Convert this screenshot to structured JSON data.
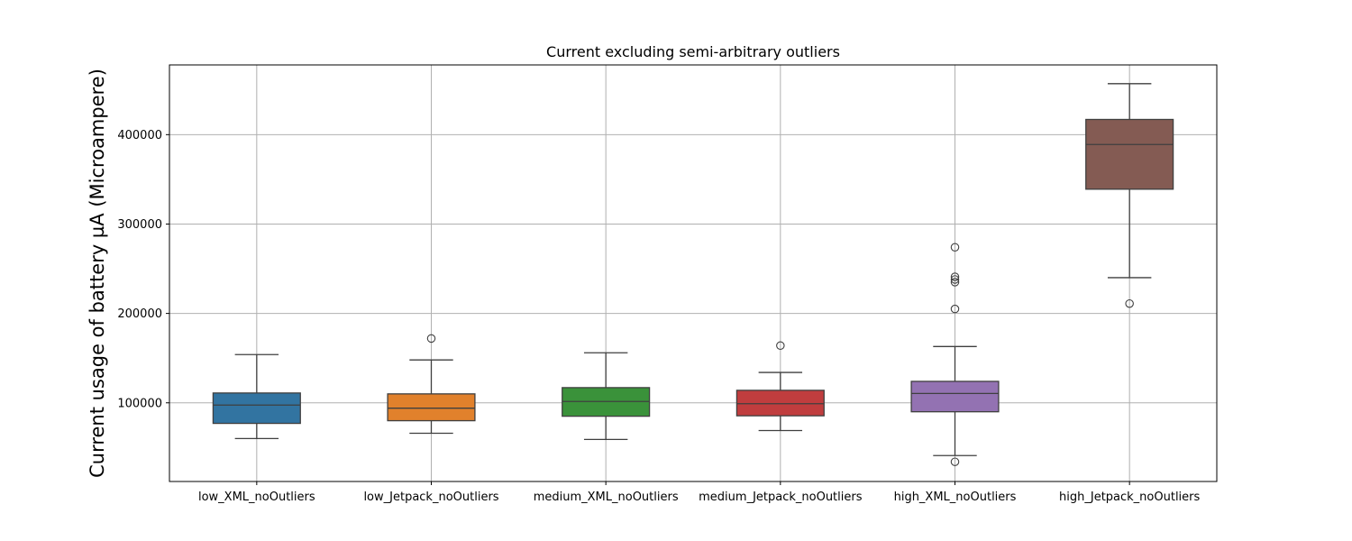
{
  "chart_data": {
    "type": "box",
    "title": "Current excluding semi-arbitrary outliers",
    "xlabel": "",
    "ylabel": "Current usage of battery µA (Microampere)",
    "ylim": [
      12000,
      478000
    ],
    "yticks": [
      100000,
      200000,
      300000,
      400000
    ],
    "ytick_labels": [
      "100000",
      "200000",
      "300000",
      "400000"
    ],
    "grid": true,
    "categories": [
      "low_XML_noOutliers",
      "low_Jetpack_noOutliers",
      "medium_XML_noOutliers",
      "medium_Jetpack_noOutliers",
      "high_XML_noOutliers",
      "high_Jetpack_noOutliers"
    ],
    "boxes": [
      {
        "category": "low_XML_noOutliers",
        "color": "#3274a1",
        "whisker_low": 60000,
        "q1": 77000,
        "median": 97500,
        "q3": 111000,
        "whisker_high": 154000,
        "outliers": []
      },
      {
        "category": "low_Jetpack_noOutliers",
        "color": "#e1812c",
        "whisker_low": 66000,
        "q1": 80000,
        "median": 94000,
        "q3": 110000,
        "whisker_high": 148000,
        "outliers": [
          172000
        ]
      },
      {
        "category": "medium_XML_noOutliers",
        "color": "#3a923a",
        "whisker_low": 59000,
        "q1": 85000,
        "median": 101500,
        "q3": 117000,
        "whisker_high": 156000,
        "outliers": []
      },
      {
        "category": "medium_Jetpack_noOutliers",
        "color": "#c03d3e",
        "whisker_low": 69000,
        "q1": 85500,
        "median": 99000,
        "q3": 114000,
        "whisker_high": 134000,
        "outliers": [
          164000
        ]
      },
      {
        "category": "high_XML_noOutliers",
        "color": "#9372b2",
        "whisker_low": 41000,
        "q1": 90000,
        "median": 110500,
        "q3": 124000,
        "whisker_high": 163000,
        "outliers": [
          34000,
          205000,
          235000,
          238000,
          241000,
          274000
        ]
      },
      {
        "category": "high_Jetpack_noOutliers",
        "color": "#845b53",
        "whisker_low": 240000,
        "q1": 339000,
        "median": 389000,
        "q3": 417000,
        "whisker_high": 457000,
        "outliers": [
          211000
        ]
      }
    ]
  }
}
